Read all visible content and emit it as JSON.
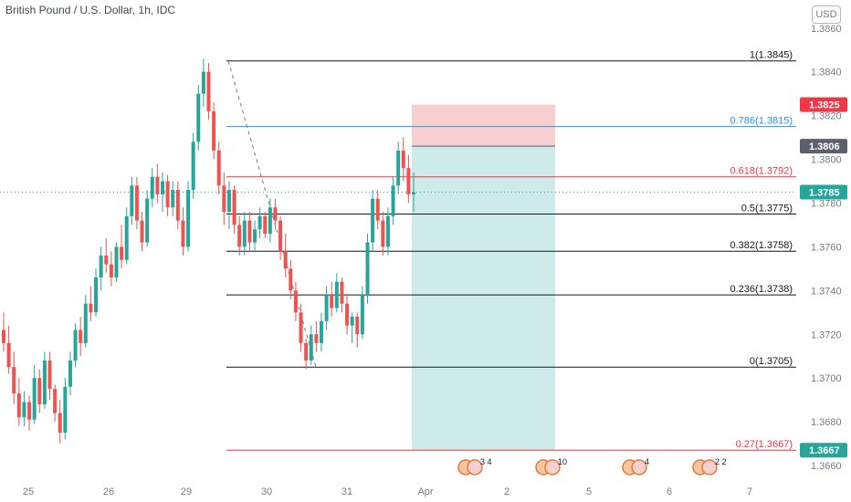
{
  "header": {
    "title": "British Pound / U.S. Dollar, 1h, IDC",
    "currency": "USD"
  },
  "colors": {
    "up": "#26a69a",
    "down": "#ef5350",
    "axis_text": "#787b86",
    "fib_black": "#131722",
    "fib_blue": "#2196f3",
    "fib_red": "#f23645",
    "stop_zone": "#f8cfcf",
    "target_zone": "#cdebe8",
    "price_badge": "#26a69a",
    "entry_badge": "#5d606b",
    "stop_badge": "#f23645"
  },
  "chart_data": {
    "type": "candlestick",
    "title": "British Pound / U.S. Dollar, 1h, IDC",
    "ylim": [
      1.3655,
      1.3862
    ],
    "y_ticks": [
      "1.3660",
      "1.3680",
      "1.3700",
      "1.3720",
      "1.3740",
      "1.3760",
      "1.3780",
      "1.3800",
      "1.3820",
      "1.3840",
      "1.3860"
    ],
    "x_ticks": [
      "25",
      "26",
      "29",
      "30",
      "31",
      "Apr",
      "2",
      "5",
      "6",
      "7"
    ],
    "last_price": "1.3785",
    "price_badges": [
      {
        "label": "1.3825",
        "value": 1.3825,
        "color": "#f23645"
      },
      {
        "label": "1.3806",
        "value": 1.3806,
        "color": "#5d606b"
      },
      {
        "label": "1.3785",
        "value": 1.3785,
        "color": "#26a69a"
      },
      {
        "label": "1.3667",
        "value": 1.3667,
        "color": "#26a69a"
      }
    ],
    "fib_levels": [
      {
        "label": "1(1.3845)",
        "value": 1.3845,
        "color": "#131722"
      },
      {
        "label": "0.786(1.3815)",
        "value": 1.3815,
        "color": "#2196f3"
      },
      {
        "label": "0.618(1.3792)",
        "value": 1.3792,
        "color": "#f23645"
      },
      {
        "label": "0.5(1.3775)",
        "value": 1.3775,
        "color": "#131722"
      },
      {
        "label": "0.382(1.3758)",
        "value": 1.3758,
        "color": "#131722"
      },
      {
        "label": "0.236(1.3738)",
        "value": 1.3738,
        "color": "#131722"
      },
      {
        "label": "0(1.3705)",
        "value": 1.3705,
        "color": "#131722"
      },
      {
        "label": "0.27(1.3667)",
        "value": 1.3667,
        "color": "#f23645"
      }
    ],
    "position": {
      "entry": 1.3806,
      "stop": 1.3825,
      "target": 1.3667
    },
    "event_markers": [
      {
        "label": "3 4"
      },
      {
        "label": "10"
      },
      {
        "label": "4"
      },
      {
        "label": "2 2"
      }
    ],
    "candles": [
      [
        1.3722,
        1.373,
        1.3712,
        1.3716
      ],
      [
        1.3716,
        1.3724,
        1.3702,
        1.3705
      ],
      [
        1.3705,
        1.3712,
        1.3688,
        1.3693
      ],
      [
        1.3693,
        1.37,
        1.3678,
        1.3682
      ],
      [
        1.3682,
        1.3694,
        1.3678,
        1.3689
      ],
      [
        1.3689,
        1.3692,
        1.3676,
        1.3681
      ],
      [
        1.3681,
        1.3706,
        1.3679,
        1.37
      ],
      [
        1.37,
        1.3704,
        1.3684,
        1.3688
      ],
      [
        1.3688,
        1.3712,
        1.3686,
        1.3708
      ],
      [
        1.3708,
        1.3712,
        1.369,
        1.3695
      ],
      [
        1.3695,
        1.3697,
        1.368,
        1.3684
      ],
      [
        1.3684,
        1.369,
        1.367,
        1.3675
      ],
      [
        1.3675,
        1.37,
        1.3672,
        1.3696
      ],
      [
        1.3696,
        1.3712,
        1.3692,
        1.3708
      ],
      [
        1.3708,
        1.3725,
        1.3705,
        1.3722
      ],
      [
        1.3722,
        1.3728,
        1.371,
        1.3716
      ],
      [
        1.3716,
        1.3738,
        1.3714,
        1.3734
      ],
      [
        1.3734,
        1.3742,
        1.3726,
        1.373
      ],
      [
        1.373,
        1.375,
        1.3728,
        1.3746
      ],
      [
        1.3746,
        1.376,
        1.374,
        1.3756
      ],
      [
        1.3756,
        1.3764,
        1.3748,
        1.3752
      ],
      [
        1.3752,
        1.3758,
        1.3742,
        1.3746
      ],
      [
        1.3746,
        1.3762,
        1.3744,
        1.376
      ],
      [
        1.376,
        1.377,
        1.375,
        1.3754
      ],
      [
        1.3754,
        1.3778,
        1.3752,
        1.3774
      ],
      [
        1.3774,
        1.3792,
        1.377,
        1.3788
      ],
      [
        1.3788,
        1.3792,
        1.3768,
        1.3772
      ],
      [
        1.3772,
        1.3776,
        1.3758,
        1.3762
      ],
      [
        1.3762,
        1.3786,
        1.376,
        1.3782
      ],
      [
        1.3782,
        1.3796,
        1.3778,
        1.3792
      ],
      [
        1.3792,
        1.3798,
        1.378,
        1.3784
      ],
      [
        1.3784,
        1.3794,
        1.3776,
        1.379
      ],
      [
        1.379,
        1.3793,
        1.3774,
        1.3778
      ],
      [
        1.3778,
        1.379,
        1.3774,
        1.3786
      ],
      [
        1.3786,
        1.379,
        1.3768,
        1.3772
      ],
      [
        1.3772,
        1.3778,
        1.3756,
        1.376
      ],
      [
        1.376,
        1.379,
        1.3758,
        1.3786
      ],
      [
        1.3786,
        1.3812,
        1.3782,
        1.3808
      ],
      [
        1.3808,
        1.3834,
        1.3804,
        1.383
      ],
      [
        1.383,
        1.3846,
        1.3824,
        1.384
      ],
      [
        1.384,
        1.3844,
        1.3818,
        1.3822
      ],
      [
        1.3822,
        1.3826,
        1.38,
        1.3804
      ],
      [
        1.3804,
        1.3808,
        1.3784,
        1.3788
      ],
      [
        1.3788,
        1.3794,
        1.377,
        1.3776
      ],
      [
        1.3776,
        1.379,
        1.3768,
        1.3786
      ],
      [
        1.3786,
        1.3788,
        1.3766,
        1.377
      ],
      [
        1.377,
        1.3774,
        1.3756,
        1.376
      ],
      [
        1.376,
        1.3776,
        1.3756,
        1.3772
      ],
      [
        1.3772,
        1.3776,
        1.3758,
        1.3762
      ],
      [
        1.3762,
        1.3772,
        1.3758,
        1.3768
      ],
      [
        1.3768,
        1.3778,
        1.3764,
        1.3774
      ],
      [
        1.3774,
        1.3776,
        1.3764,
        1.3766
      ],
      [
        1.3766,
        1.3782,
        1.3762,
        1.3778
      ],
      [
        1.3778,
        1.3782,
        1.3768,
        1.3772
      ],
      [
        1.3772,
        1.3774,
        1.3754,
        1.3758
      ],
      [
        1.3758,
        1.3766,
        1.3746,
        1.375
      ],
      [
        1.375,
        1.3754,
        1.3736,
        1.374
      ],
      [
        1.374,
        1.3744,
        1.3726,
        1.373
      ],
      [
        1.373,
        1.3734,
        1.3712,
        1.3716
      ],
      [
        1.3716,
        1.3718,
        1.3704,
        1.3708
      ],
      [
        1.3708,
        1.3724,
        1.3706,
        1.372
      ],
      [
        1.372,
        1.3726,
        1.3712,
        1.3716
      ],
      [
        1.3716,
        1.373,
        1.3712,
        1.3726
      ],
      [
        1.3726,
        1.3742,
        1.3722,
        1.3738
      ],
      [
        1.3738,
        1.3744,
        1.3728,
        1.3732
      ],
      [
        1.3732,
        1.3748,
        1.373,
        1.3744
      ],
      [
        1.3744,
        1.3746,
        1.373,
        1.3734
      ],
      [
        1.3734,
        1.3738,
        1.372,
        1.3724
      ],
      [
        1.3724,
        1.373,
        1.3716,
        1.3728
      ],
      [
        1.3728,
        1.373,
        1.3714,
        1.372
      ],
      [
        1.372,
        1.3742,
        1.3718,
        1.3738
      ],
      [
        1.3738,
        1.3766,
        1.3734,
        1.3762
      ],
      [
        1.3762,
        1.3786,
        1.3758,
        1.3782
      ],
      [
        1.3782,
        1.3786,
        1.3768,
        1.3772
      ],
      [
        1.3772,
        1.3776,
        1.3756,
        1.376
      ],
      [
        1.376,
        1.3778,
        1.3756,
        1.3774
      ],
      [
        1.3774,
        1.3792,
        1.377,
        1.3788
      ],
      [
        1.3788,
        1.3808,
        1.3784,
        1.3804
      ],
      [
        1.3804,
        1.381,
        1.379,
        1.3796
      ],
      [
        1.3796,
        1.3802,
        1.378,
        1.3784
      ],
      [
        1.3784,
        1.3794,
        1.3776,
        1.3785
      ]
    ]
  }
}
